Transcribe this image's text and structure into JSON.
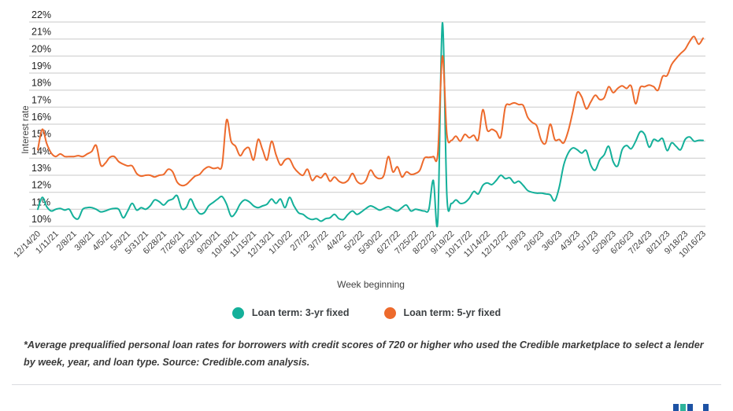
{
  "chart_data": {
    "type": "line",
    "title": "",
    "xlabel": "Week beginning",
    "ylabel": "Interest rate",
    "ylim": [
      10,
      22
    ],
    "grid": true,
    "legend_position": "bottom",
    "y_tick_values": [
      22,
      21,
      20,
      19,
      18,
      17,
      16,
      15,
      14,
      13,
      12,
      11,
      10
    ],
    "y_tick_labels": [
      "22%",
      "21%",
      "20%",
      "19%",
      "18%",
      "17%",
      "16%",
      "15%",
      "14%",
      "13%",
      "12%",
      "11%",
      "10%"
    ],
    "x_tick_labels": [
      "12/14/20",
      "1/11/21",
      "2/8/21",
      "3/8/21",
      "4/5/21",
      "5/3/21",
      "5/31/21",
      "6/28/21",
      "7/26/21",
      "8/23/21",
      "9/20/21",
      "10/18/21",
      "11/15/21",
      "12/13/21",
      "1/10/22",
      "2/7/22",
      "3/7/22",
      "4/4/22",
      "5/2/22",
      "5/30/22",
      "6/27/22",
      "7/25/22",
      "8/22/22",
      "9/19/22",
      "10/17/22",
      "11/14/22",
      "12/12/22",
      "1/9/23",
      "2/6/23",
      "3/6/23",
      "4/3/23",
      "5/1/23",
      "5/29/23",
      "6/26/23",
      "7/24/23",
      "8/21/23",
      "9/18/23",
      "10/16/23"
    ],
    "x_tick_every_n_points": 4,
    "series": [
      {
        "name": "Loan term: 3-yr fixed",
        "color": "#14B09A",
        "values": [
          11.0,
          11.7,
          11.15,
          10.9,
          11.0,
          11.05,
          10.95,
          11.0,
          10.55,
          10.45,
          11.0,
          11.1,
          11.1,
          11.0,
          10.85,
          10.9,
          11.0,
          11.05,
          11.0,
          10.5,
          10.9,
          11.35,
          10.95,
          11.1,
          11.0,
          11.2,
          11.55,
          11.45,
          11.25,
          11.5,
          11.6,
          11.8,
          11.05,
          11.1,
          11.6,
          11.1,
          10.75,
          10.8,
          11.2,
          11.4,
          11.6,
          11.75,
          11.3,
          10.6,
          10.8,
          11.3,
          11.55,
          11.45,
          11.2,
          11.1,
          11.2,
          11.3,
          11.6,
          11.35,
          11.6,
          11.1,
          11.7,
          11.2,
          10.8,
          10.7,
          10.5,
          10.4,
          10.45,
          10.3,
          10.45,
          10.5,
          10.7,
          10.45,
          10.4,
          10.7,
          10.9,
          10.7,
          10.85,
          11.05,
          11.2,
          11.1,
          10.95,
          11.05,
          11.15,
          11.0,
          10.9,
          11.1,
          11.25,
          10.9,
          11.0,
          10.95,
          10.9,
          11.0,
          12.7,
          10.35,
          21.95,
          11.8,
          11.35,
          11.55,
          11.35,
          11.4,
          11.65,
          12.05,
          11.9,
          12.4,
          12.55,
          12.45,
          12.7,
          13.0,
          12.8,
          12.85,
          12.55,
          12.65,
          12.4,
          12.1,
          12.0,
          11.95,
          11.95,
          11.9,
          11.85,
          11.5,
          12.3,
          13.6,
          14.3,
          14.6,
          14.5,
          14.3,
          14.45,
          13.6,
          13.3,
          13.9,
          14.2,
          14.7,
          13.8,
          13.55,
          14.5,
          14.75,
          14.55,
          15.0,
          15.55,
          15.4,
          14.65,
          15.1,
          15.0,
          15.15,
          14.45,
          14.9,
          14.7,
          14.5,
          15.1,
          15.25,
          15.0,
          15.05,
          15.05
        ]
      },
      {
        "name": "Loan term: 5-yr fixed",
        "color": "#ED6A2C",
        "values": [
          14.5,
          15.7,
          14.85,
          14.3,
          14.1,
          14.25,
          14.1,
          14.1,
          14.1,
          14.15,
          14.1,
          14.25,
          14.4,
          14.75,
          13.6,
          13.7,
          14.05,
          14.1,
          13.8,
          13.65,
          13.55,
          13.55,
          13.1,
          12.95,
          13.0,
          13.0,
          12.9,
          13.0,
          13.05,
          13.35,
          13.2,
          12.6,
          12.4,
          12.45,
          12.7,
          12.95,
          13.05,
          13.35,
          13.5,
          13.4,
          13.45,
          13.6,
          16.25,
          15.0,
          14.7,
          14.15,
          14.5,
          14.6,
          13.9,
          15.1,
          14.5,
          13.9,
          15.0,
          14.2,
          13.6,
          13.9,
          13.95,
          13.45,
          13.15,
          13.0,
          13.35,
          12.7,
          12.95,
          12.85,
          13.1,
          12.65,
          12.9,
          12.65,
          12.55,
          12.7,
          13.1,
          12.65,
          12.5,
          12.7,
          13.3,
          12.95,
          12.8,
          13.0,
          14.1,
          13.2,
          13.5,
          12.9,
          13.2,
          13.05,
          13.1,
          13.3,
          14.0,
          14.05,
          14.1,
          14.3,
          20.0,
          15.4,
          15.05,
          15.3,
          15.0,
          15.4,
          15.2,
          15.35,
          15.1,
          16.85,
          15.65,
          15.7,
          15.55,
          15.25,
          17.0,
          17.15,
          17.25,
          17.15,
          17.1,
          16.4,
          16.1,
          15.9,
          15.05,
          14.9,
          16.0,
          15.1,
          15.1,
          14.9,
          15.6,
          16.7,
          17.85,
          17.6,
          16.9,
          17.3,
          17.7,
          17.45,
          17.55,
          18.2,
          17.85,
          18.1,
          18.25,
          18.1,
          18.25,
          17.2,
          18.15,
          18.2,
          18.3,
          18.2,
          18.0,
          18.8,
          18.85,
          19.5,
          19.85,
          20.15,
          20.4,
          20.85,
          21.15,
          20.7,
          21.05
        ]
      }
    ]
  },
  "legend": {
    "items": [
      {
        "label": "Loan term: 3-yr fixed",
        "color": "#14B09A"
      },
      {
        "label": "Loan term: 5-yr fixed",
        "color": "#ED6A2C"
      }
    ]
  },
  "footnote": "*Average prequalified personal loan rates for borrowers with credit scores of 720 or higher who used the Credible marketplace to select a lender by week, year, and loan type. Source: Credible.com analysis.",
  "colors": {
    "gridline": "#c9c9c9",
    "y_tick_text": "#212121",
    "x_tick_text": "#424242",
    "axis_title_text": "#424242"
  },
  "logo": {
    "bar_colors": [
      "#1D52A4",
      "#2EB39B",
      "#1D52A4",
      "#1D52A4"
    ]
  }
}
